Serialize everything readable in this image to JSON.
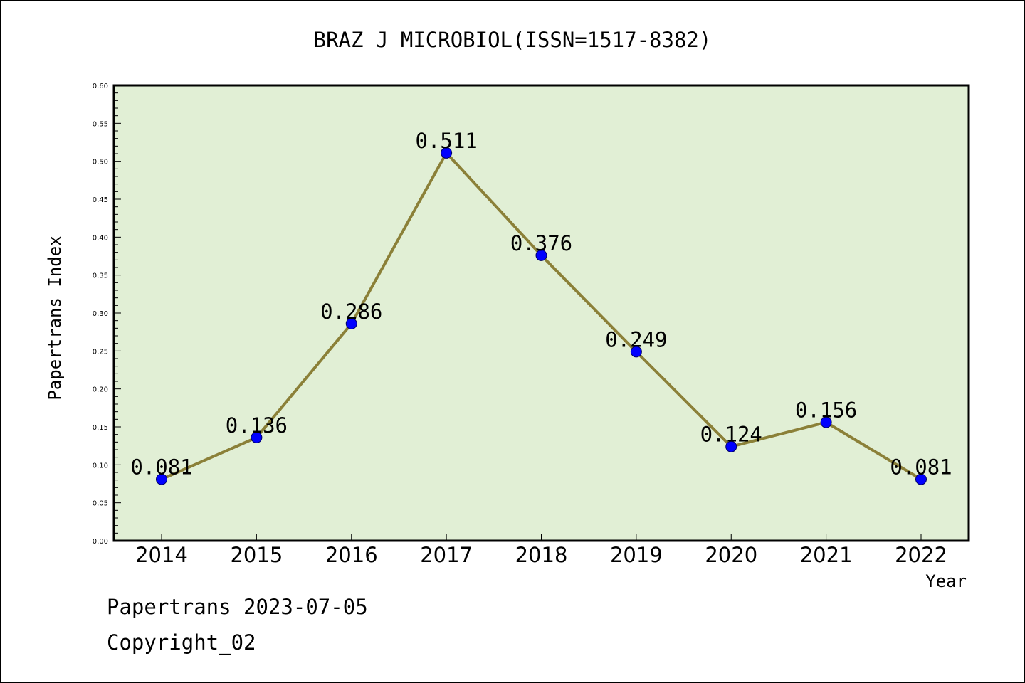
{
  "chart_data": {
    "type": "line",
    "title": "BRAZ J MICROBIOL(ISSN=1517-8382)",
    "xlabel": "Year",
    "ylabel": "Papertrans Index",
    "categories": [
      "2014",
      "2015",
      "2016",
      "2017",
      "2018",
      "2019",
      "2020",
      "2021",
      "2022"
    ],
    "values": [
      0.081,
      0.136,
      0.286,
      0.511,
      0.376,
      0.249,
      0.124,
      0.156,
      0.081
    ],
    "data_labels": [
      "0.081",
      "0.136",
      "0.286",
      "0.511",
      "0.376",
      "0.249",
      "0.124",
      "0.156",
      "0.081"
    ],
    "ylim": [
      0,
      0.6
    ],
    "yticks": [
      "0.00",
      "0.05",
      "0.10",
      "0.15",
      "0.20",
      "0.25",
      "0.30",
      "0.35",
      "0.40",
      "0.45",
      "0.50",
      "0.55",
      "0.60"
    ],
    "grid": false,
    "legend": "none",
    "colors": {
      "plot_background": "#e1efd5",
      "line": "#8b8038",
      "marker": "#0000ff"
    }
  },
  "footer": {
    "line1": "Papertrans 2023-07-05",
    "line2": "Copyright_02"
  }
}
